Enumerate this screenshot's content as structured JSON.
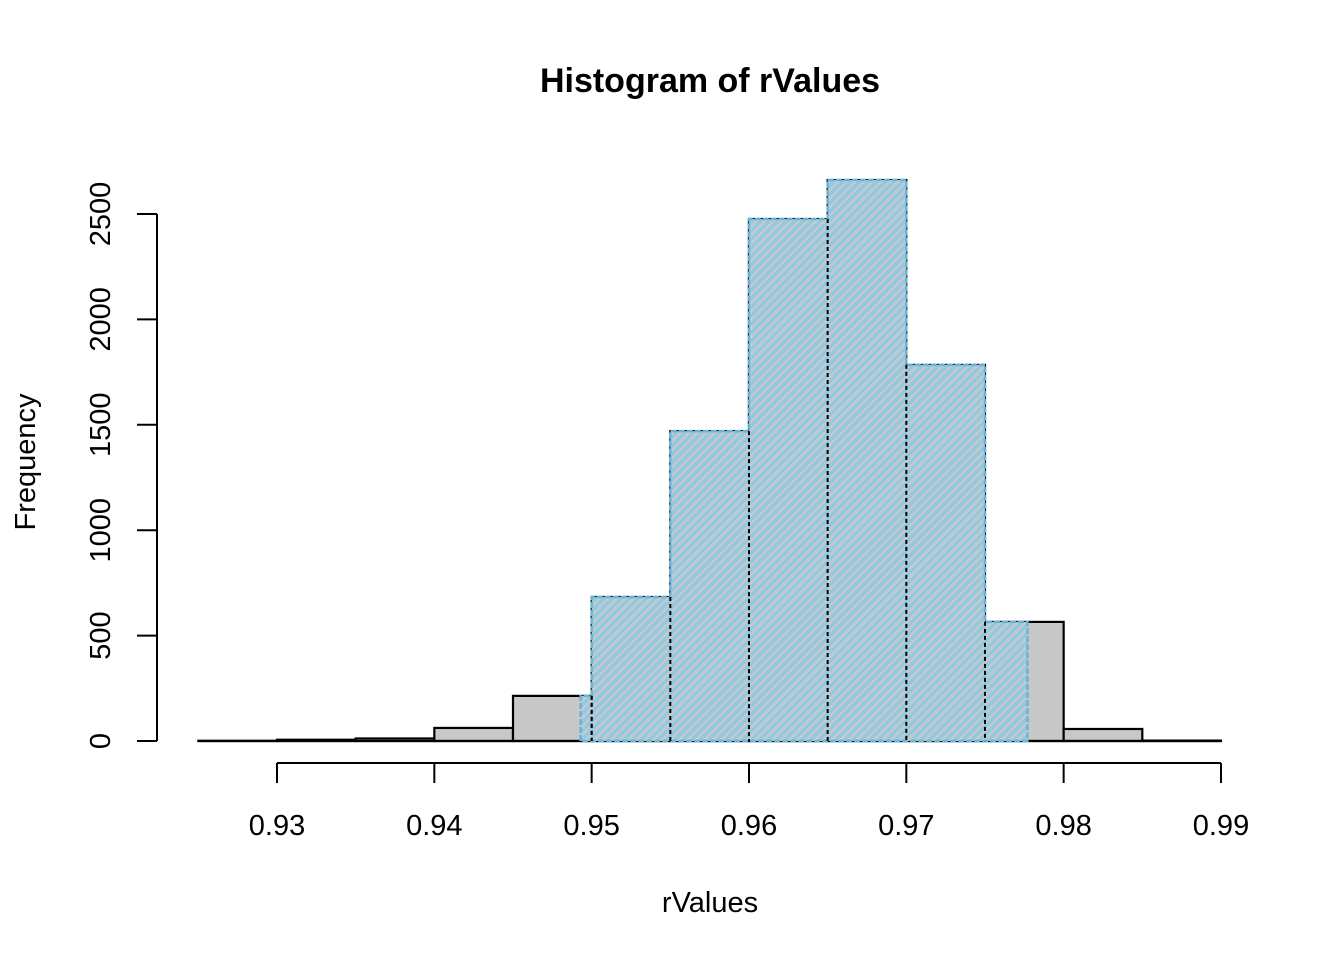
{
  "chart_data": {
    "type": "bar",
    "title": "Histogram of rValues",
    "xlabel": "rValues",
    "ylabel": "Frequency",
    "bin_width": 0.005,
    "bin_edges": [
      0.925,
      0.93,
      0.935,
      0.94,
      0.945,
      0.95,
      0.955,
      0.96,
      0.965,
      0.97,
      0.975,
      0.98,
      0.985,
      0.99
    ],
    "categories": [
      "0.925-0.93",
      "0.93-0.935",
      "0.935-0.94",
      "0.94-0.945",
      "0.945-0.95",
      "0.95-0.955",
      "0.955-0.96",
      "0.96-0.965",
      "0.965-0.97",
      "0.97-0.975",
      "0.975-0.98",
      "0.98-0.985",
      "0.985-0.99"
    ],
    "values": [
      1,
      6,
      12,
      62,
      214,
      683,
      1470,
      2476,
      2661,
      1784,
      565,
      57,
      2
    ],
    "xlim": [
      0.925,
      0.99
    ],
    "ylim": [
      0,
      2700
    ],
    "x_ticks": [
      0.93,
      0.94,
      0.95,
      0.96,
      0.97,
      0.98,
      0.99
    ],
    "x_tick_labels": [
      "0.93",
      "0.94",
      "0.95",
      "0.96",
      "0.97",
      "0.98",
      "0.99"
    ],
    "y_ticks": [
      0,
      500,
      1000,
      1500,
      2000,
      2500
    ],
    "y_tick_labels": [
      "0",
      "500",
      "1000",
      "1500",
      "2000",
      "2500"
    ],
    "grid": false,
    "legend": null,
    "highlight_region": {
      "description": "hatched light-blue overlay covering central interval of the distribution",
      "x_from": 0.9493,
      "x_to": 0.9777
    },
    "colors": {
      "bar_fill": "#C8C8C8",
      "bar_border": "#000000",
      "highlight_fill": "#8ECAE6",
      "highlight_hatch": "#C8C8C8",
      "highlight_border": "#6BB3D6"
    }
  }
}
